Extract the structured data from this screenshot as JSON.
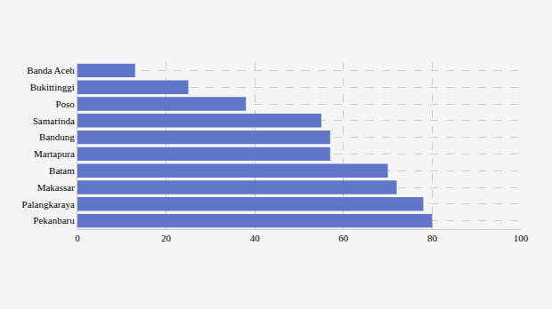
{
  "chart_data": {
    "type": "bar",
    "orientation": "horizontal",
    "categories": [
      "Banda Aceh",
      "Bukittinggi",
      "Poso",
      "Samarinda",
      "Bandung",
      "Martapura",
      "Batam",
      "Makassar",
      "Palangkaraya",
      "Pekanbaru"
    ],
    "values": [
      13,
      25,
      38,
      55,
      57,
      57,
      70,
      72,
      78,
      80
    ],
    "color": "#6077c9",
    "xlim": [
      0,
      100
    ],
    "xticks": [
      0,
      20,
      40,
      60,
      80,
      100
    ],
    "grid": true
  }
}
